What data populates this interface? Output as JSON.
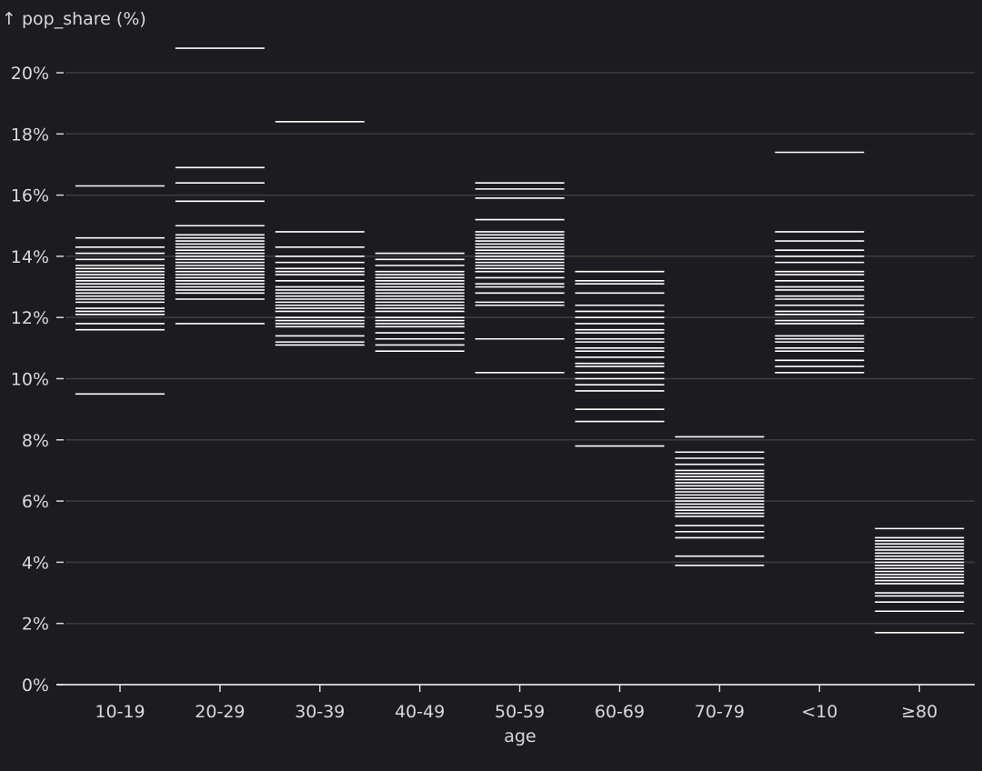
{
  "chart_data": {
    "type": "tickplot",
    "ylabel": "↑ pop_share (%)",
    "xlabel": "age",
    "ylim": [
      0,
      21
    ],
    "yticks": [
      0,
      2,
      4,
      6,
      8,
      10,
      12,
      14,
      16,
      18,
      20
    ],
    "ytick_labels": [
      "0%",
      "2%",
      "4%",
      "6%",
      "8%",
      "10%",
      "12%",
      "14%",
      "16%",
      "18%",
      "20%"
    ],
    "grid": true,
    "colors": {
      "background": "#1c1c20",
      "mark": "#ffffff",
      "grid": "#3c3c42",
      "text": "#d8d8d8"
    },
    "categories": [
      {
        "label": "10-19",
        "values": [
          9.5,
          11.6,
          11.8,
          12.1,
          12.2,
          12.3,
          12.5,
          12.6,
          12.7,
          12.8,
          12.9,
          13.0,
          13.1,
          13.2,
          13.3,
          13.4,
          13.5,
          13.6,
          13.7,
          13.9,
          14.1,
          14.3,
          14.6,
          16.3
        ]
      },
      {
        "label": "20-29",
        "values": [
          11.8,
          12.6,
          12.8,
          12.9,
          13.0,
          13.1,
          13.2,
          13.3,
          13.4,
          13.5,
          13.6,
          13.7,
          13.8,
          13.9,
          14.0,
          14.1,
          14.2,
          14.3,
          14.4,
          14.5,
          14.6,
          14.7,
          15.0,
          15.8,
          16.4,
          16.9,
          20.8
        ]
      },
      {
        "label": "30-39",
        "values": [
          11.1,
          11.2,
          11.4,
          11.7,
          11.8,
          11.9,
          12.0,
          12.2,
          12.3,
          12.4,
          12.5,
          12.6,
          12.7,
          12.8,
          12.9,
          13.0,
          13.2,
          13.4,
          13.5,
          13.6,
          13.8,
          14.0,
          14.3,
          14.8,
          18.4
        ]
      },
      {
        "label": "40-49",
        "values": [
          10.9,
          11.1,
          11.3,
          11.5,
          11.7,
          11.8,
          11.9,
          12.0,
          12.2,
          12.3,
          12.4,
          12.5,
          12.6,
          12.7,
          12.8,
          12.9,
          13.0,
          13.1,
          13.2,
          13.3,
          13.4,
          13.5,
          13.7,
          13.9,
          14.1
        ]
      },
      {
        "label": "50-59",
        "values": [
          10.2,
          11.3,
          12.4,
          12.5,
          12.8,
          13.0,
          13.1,
          13.3,
          13.5,
          13.6,
          13.7,
          13.8,
          13.9,
          14.0,
          14.1,
          14.2,
          14.3,
          14.4,
          14.5,
          14.6,
          14.7,
          14.8,
          15.2,
          15.9,
          16.2,
          16.4
        ]
      },
      {
        "label": "60-69",
        "values": [
          7.8,
          8.6,
          9.0,
          9.6,
          9.8,
          10.0,
          10.2,
          10.4,
          10.5,
          10.7,
          10.9,
          11.0,
          11.2,
          11.3,
          11.5,
          11.6,
          11.8,
          12.0,
          12.2,
          12.4,
          12.8,
          13.1,
          13.2,
          13.5
        ]
      },
      {
        "label": "70-79",
        "values": [
          3.9,
          4.2,
          4.8,
          5.0,
          5.2,
          5.5,
          5.6,
          5.7,
          5.8,
          5.9,
          6.0,
          6.1,
          6.2,
          6.3,
          6.4,
          6.5,
          6.6,
          6.7,
          6.8,
          6.9,
          7.0,
          7.2,
          7.4,
          7.6,
          8.1
        ]
      },
      {
        "label": "<10",
        "values": [
          10.2,
          10.4,
          10.6,
          10.9,
          11.0,
          11.2,
          11.3,
          11.4,
          11.8,
          11.9,
          12.1,
          12.2,
          12.4,
          12.6,
          12.7,
          12.9,
          13.0,
          13.2,
          13.4,
          13.5,
          13.8,
          14.0,
          14.2,
          14.5,
          14.8,
          17.4
        ]
      },
      {
        "label": "≥80",
        "values": [
          1.7,
          2.4,
          2.7,
          2.9,
          3.0,
          3.3,
          3.4,
          3.5,
          3.6,
          3.7,
          3.8,
          3.9,
          4.0,
          4.1,
          4.2,
          4.3,
          4.4,
          4.5,
          4.6,
          4.7,
          4.8,
          5.1
        ]
      }
    ]
  }
}
